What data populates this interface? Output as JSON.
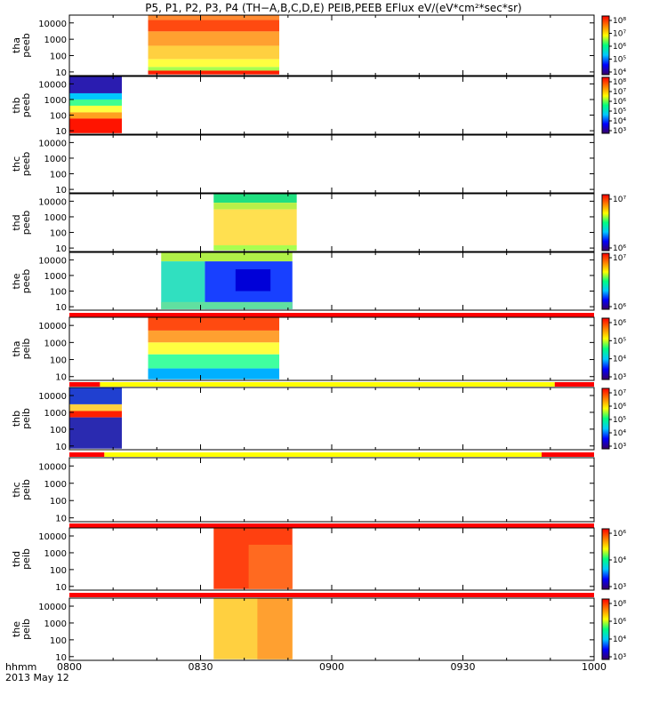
{
  "chart_data": {
    "type": "heatmap",
    "title": "P5, P1, P2, P3, P4 (TH−A,B,C,D,E) PEIB,PEEB EFlux eV/(eV*cm²*sec*sr)",
    "x_label_unit": "hhmm",
    "date_label": "2013 May 12",
    "x_range_hhmm": [
      "0800",
      "1000"
    ],
    "x_tick_labels": [
      "0800",
      "0830",
      "0900",
      "0930",
      "1000"
    ],
    "y_tick_labels": [
      "10000",
      "1000",
      "100",
      "10"
    ],
    "y_scale": "log",
    "colorbar_scale": "log",
    "colorbar_colors": [
      "#3a0064",
      "#0000ff",
      "#00c8ff",
      "#00ff80",
      "#ffff00",
      "#ff8000",
      "#ff0000"
    ],
    "panels": [
      {
        "label": "thaª peeb",
        "probe": "tha",
        "product": "peeb",
        "colorbar_ticks": [
          "10⁸",
          "10⁷",
          "10⁶",
          "10⁵",
          "10⁴"
        ],
        "data_blocks": [
          {
            "t_start": "0818",
            "t_end": "0848",
            "fill": "orange-red bands with yellow-green stripe at low energy"
          }
        ],
        "bands": [
          {
            "t_start": "0818",
            "t_end": "0848",
            "e_low": 15000,
            "e_high": 30000,
            "color": "#ff8a30"
          },
          {
            "t_start": "0818",
            "t_end": "0848",
            "e_low": 3000,
            "e_high": 15000,
            "color": "#ff4a10"
          },
          {
            "t_start": "0818",
            "t_end": "0848",
            "e_low": 400,
            "e_high": 3000,
            "color": "#ffa030"
          },
          {
            "t_start": "0818",
            "t_end": "0848",
            "e_low": 60,
            "e_high": 400,
            "color": "#ffd040"
          },
          {
            "t_start": "0818",
            "t_end": "0848",
            "e_low": 20,
            "e_high": 60,
            "color": "#ffff40"
          },
          {
            "t_start": "0818",
            "t_end": "0848",
            "e_low": 12,
            "e_high": 20,
            "color": "#a8ff50"
          },
          {
            "t_start": "0818",
            "t_end": "0848",
            "e_low": 7,
            "e_high": 12,
            "color": "#ff1e00"
          }
        ]
      },
      {
        "label": "thb peeb",
        "probe": "thb",
        "product": "peeb",
        "colorbar_ticks": [
          "10⁸",
          "10⁷",
          "10⁶",
          "10⁵",
          "10⁴",
          "10³"
        ],
        "bands": [
          {
            "t_start": "0800",
            "t_end": "0812",
            "e_low": 2500,
            "e_high": 30000,
            "color": "#2a1cb0"
          },
          {
            "t_start": "0800",
            "t_end": "0812",
            "e_low": 1000,
            "e_high": 2500,
            "color": "#00c8ff"
          },
          {
            "t_start": "0800",
            "t_end": "0812",
            "e_low": 400,
            "e_high": 1000,
            "color": "#40ff90"
          },
          {
            "t_start": "0800",
            "t_end": "0812",
            "e_low": 150,
            "e_high": 400,
            "color": "#ffff40"
          },
          {
            "t_start": "0800",
            "t_end": "0812",
            "e_low": 60,
            "e_high": 150,
            "color": "#ffa020"
          },
          {
            "t_start": "0800",
            "t_end": "0812",
            "e_low": 7,
            "e_high": 60,
            "color": "#ff1400"
          }
        ]
      },
      {
        "label": "thc peeb",
        "probe": "thc",
        "product": "peeb",
        "colorbar_ticks": [],
        "bands": []
      },
      {
        "label": "thd peeb",
        "probe": "thd",
        "product": "peeb",
        "colorbar_ticks": [
          "10⁷",
          "10⁶"
        ],
        "bands": [
          {
            "t_start": "0833",
            "t_end": "0852",
            "e_low": 8000,
            "e_high": 30000,
            "color": "#20e080"
          },
          {
            "t_start": "0833",
            "t_end": "0852",
            "e_low": 3000,
            "e_high": 8000,
            "color": "#b8f048"
          },
          {
            "t_start": "0833",
            "t_end": "0852",
            "e_low": 15,
            "e_high": 3000,
            "color": "#ffe050"
          },
          {
            "t_start": "0833",
            "t_end": "0852",
            "e_low": 7,
            "e_high": 15,
            "color": "#a8ff50"
          }
        ]
      },
      {
        "label": "the peeb",
        "probe": "the",
        "product": "peeb",
        "colorbar_ticks": [
          "10⁷",
          "10⁶"
        ],
        "bands": [
          {
            "t_start": "0821",
            "t_end": "0851",
            "e_low": 8000,
            "e_high": 30000,
            "color": "#b0f048"
          },
          {
            "t_start": "0821",
            "t_end": "0831",
            "e_low": 7,
            "e_high": 8000,
            "color": "#30e0c0"
          },
          {
            "t_start": "0831",
            "t_end": "0851",
            "e_low": 7,
            "e_high": 8000,
            "color": "#1840ff"
          },
          {
            "t_start": "0838",
            "t_end": "0846",
            "e_low": 100,
            "e_high": 2500,
            "color": "#0000d8"
          },
          {
            "t_start": "0821",
            "t_end": "0851",
            "e_low": 7,
            "e_high": 20,
            "color": "#60e0a0"
          }
        ]
      },
      {
        "label": "tha peib",
        "probe": "tha",
        "product": "peib",
        "colorbar_ticks": [
          "10⁶",
          "10⁵",
          "10⁴",
          "10³"
        ],
        "status_bar": [
          {
            "t_start": "0800",
            "t_end": "1000",
            "color": "#ff0000"
          }
        ],
        "bands": [
          {
            "t_start": "0818",
            "t_end": "0848",
            "e_low": 5000,
            "e_high": 30000,
            "color": "#ff4a10"
          },
          {
            "t_start": "0818",
            "t_end": "0848",
            "e_low": 1000,
            "e_high": 5000,
            "color": "#ffa030"
          },
          {
            "t_start": "0818",
            "t_end": "0848",
            "e_low": 200,
            "e_high": 1000,
            "color": "#ffff40"
          },
          {
            "t_start": "0818",
            "t_end": "0848",
            "e_low": 30,
            "e_high": 200,
            "color": "#40ffa0"
          },
          {
            "t_start": "0818",
            "t_end": "0848",
            "e_low": 7,
            "e_high": 30,
            "color": "#00b0ff"
          }
        ]
      },
      {
        "label": "thb peib",
        "probe": "thb",
        "product": "peib",
        "colorbar_ticks": [
          "10⁷",
          "10⁶",
          "10⁵",
          "10⁴",
          "10³"
        ],
        "status_bar": [
          {
            "t_start": "0800",
            "t_end": "0807",
            "color": "#ff0000"
          },
          {
            "t_start": "0807",
            "t_end": "0951",
            "color": "#ffff00"
          },
          {
            "t_start": "0951",
            "t_end": "1000",
            "color": "#ff0000"
          }
        ],
        "bands": [
          {
            "t_start": "0800",
            "t_end": "0812",
            "e_low": 3000,
            "e_high": 30000,
            "color": "#2040d0"
          },
          {
            "t_start": "0800",
            "t_end": "0812",
            "e_low": 1200,
            "e_high": 3000,
            "color": "#ffd040"
          },
          {
            "t_start": "0800",
            "t_end": "0812",
            "e_low": 500,
            "e_high": 1200,
            "color": "#ff2000"
          },
          {
            "t_start": "0800",
            "t_end": "0812",
            "e_low": 7,
            "e_high": 500,
            "color": "#2a2ab0"
          }
        ]
      },
      {
        "label": "thc peib",
        "probe": "thc",
        "product": "peib",
        "colorbar_ticks": [],
        "status_bar": [
          {
            "t_start": "0800",
            "t_end": "0808",
            "color": "#ff0000"
          },
          {
            "t_start": "0808",
            "t_end": "0948",
            "color": "#ffff00"
          },
          {
            "t_start": "0948",
            "t_end": "1000",
            "color": "#ff0000"
          }
        ],
        "bands": []
      },
      {
        "label": "thd peib",
        "probe": "thd",
        "product": "peib",
        "colorbar_ticks": [
          "10⁶",
          "10⁴",
          "10³"
        ],
        "status_bar": [
          {
            "t_start": "0800",
            "t_end": "1000",
            "color": "#ff0000"
          }
        ],
        "bands": [
          {
            "t_start": "0833",
            "t_end": "0851",
            "e_low": 7,
            "e_high": 30000,
            "color": "#ff4010"
          },
          {
            "t_start": "0841",
            "t_end": "0851",
            "e_low": 7,
            "e_high": 3000,
            "color": "#ff6a20"
          }
        ]
      },
      {
        "label": "the peib",
        "probe": "the",
        "product": "peib",
        "colorbar_ticks": [
          "10⁸",
          "10⁶",
          "10⁴",
          "10³"
        ],
        "status_bar": [
          {
            "t_start": "0800",
            "t_end": "1000",
            "color": "#ff0000"
          }
        ],
        "bands": [
          {
            "t_start": "0833",
            "t_end": "0851",
            "e_low": 7,
            "e_high": 30000,
            "color": "#ffd040"
          },
          {
            "t_start": "0843",
            "t_end": "0851",
            "e_low": 7,
            "e_high": 30000,
            "color": "#ffa030"
          }
        ]
      }
    ]
  }
}
